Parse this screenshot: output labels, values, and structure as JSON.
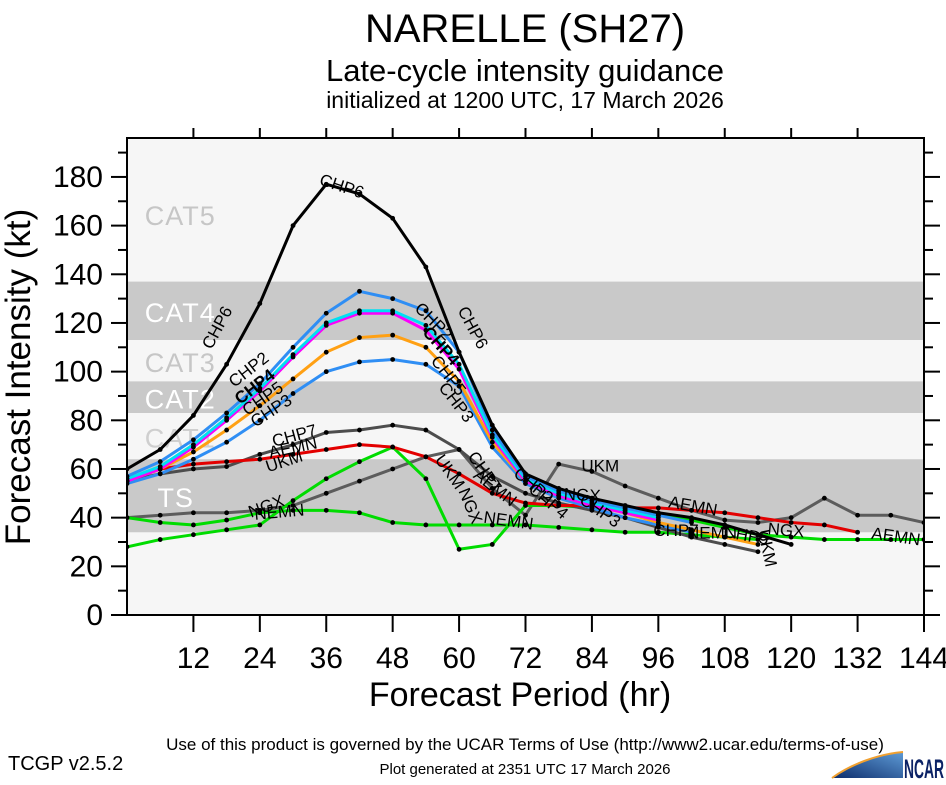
{
  "chart_data": {
    "type": "line",
    "title": "NARELLE (SH27)",
    "subtitle": "Late-cycle intensity guidance",
    "initialization": "initialized at 1200 UTC, 17 March 2026",
    "xlabel": "Forecast Period (hr)",
    "ylabel": "Forecast Intensity (kt)",
    "xlim": [
      0,
      144
    ],
    "ylim": [
      0,
      196
    ],
    "point_interval_hr": 6,
    "x_ticks": [
      12,
      24,
      36,
      48,
      60,
      72,
      84,
      96,
      108,
      120,
      132,
      144
    ],
    "y_ticks_major": [
      0,
      20,
      40,
      60,
      80,
      100,
      120,
      140,
      160,
      180
    ],
    "y_ticks_minor": [
      10,
      30,
      50,
      70,
      90,
      110,
      130,
      150,
      170,
      190
    ],
    "grid": false,
    "legend": "labels drawn along lines",
    "colors": {
      "plot_bg": "#f6f6f6",
      "band": "#c9c9c9",
      "frame": "#000000",
      "marker": "#000000"
    },
    "bands": [
      {
        "label": "TS",
        "from_kt": 34,
        "to_kt": 64,
        "shaded": true,
        "label_color": "#ffffff",
        "label_hr": 5.5,
        "label_kt": 48
      },
      {
        "label": "CAT1",
        "from_kt": 64,
        "to_kt": 83,
        "shaded": false,
        "label_color": "#cfcfcf",
        "label_hr": 3.2,
        "label_kt": 72.5
      },
      {
        "label": "CAT2",
        "from_kt": 83,
        "to_kt": 96,
        "shaded": true,
        "label_color": "#ffffff",
        "label_hr": 3.2,
        "label_kt": 88.5
      },
      {
        "label": "CAT3",
        "from_kt": 96,
        "to_kt": 113,
        "shaded": false,
        "label_color": "#c6c6c6",
        "label_hr": 3.2,
        "label_kt": 103.5
      },
      {
        "label": "CAT4",
        "from_kt": 113,
        "to_kt": 137,
        "shaded": true,
        "label_color": "#ffffff",
        "label_hr": 3.2,
        "label_kt": 124
      },
      {
        "label": "CAT5",
        "from_kt": 137,
        "to_kt": 196,
        "shaded": false,
        "label_color": "#c6c6c6",
        "label_hr": 3.2,
        "label_kt": 164
      }
    ],
    "series": [
      {
        "name": "UKM",
        "color": "#5c5c5c",
        "start_hr": 0,
        "values": [
          40,
          41,
          42,
          42,
          43,
          45,
          50,
          55,
          60,
          65,
          68,
          52,
          41,
          62,
          59,
          53,
          48,
          43,
          39,
          38,
          40,
          48,
          41,
          41,
          38
        ]
      },
      {
        "name": "NEMN",
        "color": "#00dc00",
        "start_hr": 0,
        "values": [
          40,
          38,
          37,
          39,
          42,
          43,
          43,
          42,
          38,
          37,
          37,
          37,
          37,
          36,
          35,
          34,
          34,
          33,
          32,
          31
        ]
      },
      {
        "name": "NGX",
        "color": "#00dc00",
        "start_hr": 0,
        "values": [
          28,
          31,
          33,
          35,
          37,
          47,
          56,
          63,
          69,
          56,
          27,
          29,
          45,
          45,
          44,
          43,
          41,
          39,
          36,
          33,
          32,
          31,
          31,
          31,
          31
        ]
      },
      {
        "name": "CHP7",
        "color": "#4d4d4d",
        "start_hr": 0,
        "values": [
          55,
          58,
          60,
          61,
          66,
          70,
          75,
          76,
          78,
          76,
          68,
          57,
          50,
          46,
          43,
          40,
          36,
          32,
          29,
          26
        ]
      },
      {
        "name": "AEMN",
        "color": "#e30000",
        "start_hr": 0,
        "values": [
          55,
          60,
          62,
          63,
          64,
          66,
          68,
          70,
          69,
          65,
          58,
          50,
          46,
          45,
          45,
          44,
          44,
          43,
          42,
          40,
          38,
          37,
          34
        ]
      },
      {
        "name": "CHP3",
        "color": "#2f8ef4",
        "start_hr": 0,
        "values": [
          54,
          58,
          64,
          71,
          80,
          91,
          100,
          104,
          105,
          103,
          94,
          69,
          54,
          48,
          44,
          40,
          37,
          34
        ]
      },
      {
        "name": "CHP5",
        "color": "#ffa013",
        "start_hr": 0,
        "values": [
          55,
          60,
          67,
          76,
          86,
          97,
          108,
          114,
          115,
          110,
          96,
          71,
          55,
          49,
          45,
          42,
          38,
          35,
          32,
          29
        ]
      },
      {
        "name": "CHP1",
        "color": "#fb00fb",
        "start_hr": 0,
        "values": [
          55,
          60,
          69,
          80,
          92,
          106,
          119,
          124,
          124,
          117,
          101,
          73,
          55,
          49,
          45,
          42,
          39
        ]
      },
      {
        "name": "CHP4",
        "color": "#00dff2",
        "start_hr": 0,
        "values": [
          56,
          61,
          70,
          81,
          93,
          107,
          120,
          125,
          125,
          119,
          103,
          74,
          56,
          50,
          46,
          43,
          40
        ]
      },
      {
        "name": "CHP2",
        "color": "#2f8ef4",
        "start_hr": 0,
        "values": [
          57,
          63,
          72,
          83,
          95,
          110,
          124,
          133,
          130,
          125,
          108,
          76,
          57,
          51,
          47,
          44,
          41,
          38
        ]
      },
      {
        "name": "CHP6",
        "color": "#000000",
        "start_hr": 0,
        "values": [
          60,
          68,
          82,
          103,
          128,
          160,
          177,
          173,
          163,
          143,
          108,
          78,
          58,
          52,
          48,
          45,
          42,
          40,
          37,
          33,
          29
        ]
      }
    ],
    "line_labels": [
      {
        "text": "CHP6",
        "hr": 17.2,
        "kt": 117,
        "rot": -62
      },
      {
        "text": "CHP2",
        "hr": 22.6,
        "kt": 99,
        "rot": -38
      },
      {
        "text": "CHP4",
        "hr": 23.7,
        "kt": 92,
        "rot": -38,
        "bold": true
      },
      {
        "text": "CHP5",
        "hr": 25.1,
        "kt": 87,
        "rot": -35
      },
      {
        "text": "CHP3",
        "hr": 26.6,
        "kt": 82,
        "rot": -33
      },
      {
        "text": "CHP7",
        "hr": 30.5,
        "kt": 71.5,
        "rot": -15
      },
      {
        "text": "AEMN",
        "hr": 30.2,
        "kt": 66.5,
        "rot": -12
      },
      {
        "text": "UKM",
        "hr": 28.7,
        "kt": 61,
        "rot": -18
      },
      {
        "text": "NGX",
        "hr": 25.5,
        "kt": 42.5,
        "rot": -20
      },
      {
        "text": "NEMN",
        "hr": 27.6,
        "kt": 40,
        "rot": -5
      },
      {
        "text": "CHP6",
        "hr": 38.5,
        "kt": 174,
        "rot": 18
      },
      {
        "text": "CHP2",
        "hr": 54.7,
        "kt": 119,
        "rot": 45
      },
      {
        "text": "CHP4",
        "hr": 56.0,
        "kt": 109,
        "rot": 48,
        "bold": true
      },
      {
        "text": "CHP6",
        "hr": 61.6,
        "kt": 117,
        "rot": 62
      },
      {
        "text": "CHP5",
        "hr": 57.3,
        "kt": 97,
        "rot": 52
      },
      {
        "text": "CHP3",
        "hr": 58.7,
        "kt": 86,
        "rot": 52
      },
      {
        "text": "UKM",
        "hr": 57.5,
        "kt": 57.5,
        "rot": 55
      },
      {
        "text": "CHP7",
        "hr": 63.8,
        "kt": 57.5,
        "rot": 55
      },
      {
        "text": "AEMN",
        "hr": 65.9,
        "kt": 50.5,
        "rot": 38
      },
      {
        "text": "NGX",
        "hr": 61.1,
        "kt": 44,
        "rot": 68
      },
      {
        "text": "NEMN",
        "hr": 68.8,
        "kt": 36.5,
        "rot": 8
      },
      {
        "text": "CHP2",
        "hr": 72.8,
        "kt": 51.5,
        "rot": 40
      },
      {
        "text": "CHP4",
        "hr": 75.5,
        "kt": 45,
        "rot": 40
      },
      {
        "text": "CHP3",
        "hr": 84.9,
        "kt": 41,
        "rot": 35
      },
      {
        "text": "UKM",
        "hr": 85.5,
        "kt": 59,
        "rot": 0
      },
      {
        "text": "NGX",
        "hr": 82.2,
        "kt": 47,
        "rot": 3
      },
      {
        "text": "AEMN",
        "hr": 102.1,
        "kt": 42.5,
        "rot": 10
      },
      {
        "text": "CHP7",
        "hr": 99.2,
        "kt": 32.5,
        "rot": 0
      },
      {
        "text": "NEMN",
        "hr": 105.7,
        "kt": 31.5,
        "rot": 0
      },
      {
        "text": "CHP5",
        "hr": 111.7,
        "kt": 30.5,
        "rot": 10
      },
      {
        "text": "UKM",
        "hr": 114.7,
        "kt": 27,
        "rot": 78
      },
      {
        "text": "NGX",
        "hr": 119.0,
        "kt": 32.5,
        "rot": 5
      },
      {
        "text": "AEMN",
        "hr": 138.8,
        "kt": 30,
        "rot": 8
      }
    ]
  },
  "footer": {
    "terms": "Use of this product is governed by the UCAR Terms of Use (http://www2.ucar.edu/terms-of-use)",
    "version": "TCGP v2.5.2",
    "generated": "Plot generated at 2351 UTC  17 March 2026",
    "logo_text": "NCAR"
  }
}
